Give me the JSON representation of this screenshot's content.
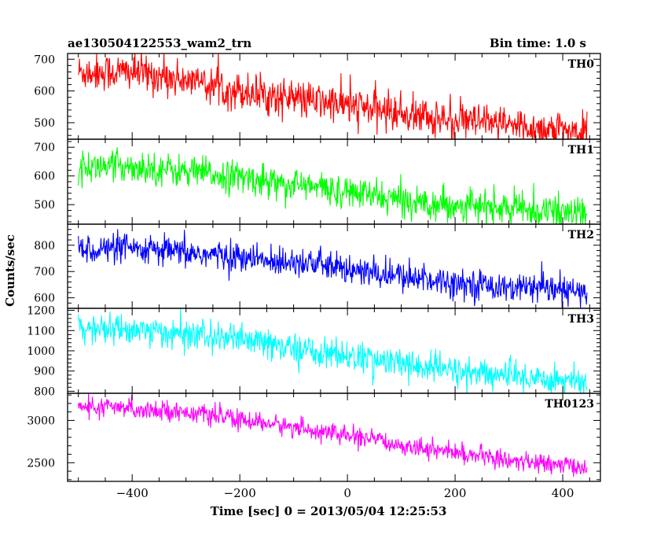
{
  "header": {
    "title": "ae130504122553_wam2_trn",
    "bin_time": "Bin time: 1.0 s"
  },
  "chart_data": {
    "type": "line",
    "title": "ae130504122553_wam2_trn",
    "subtitle": "Bin time: 1.0 s",
    "xlabel": "Time [sec] 0 = 2013/05/04 12:25:53",
    "ylabel": "Counts/sec",
    "xlim": [
      -520,
      470
    ],
    "x_ticks": [
      -400,
      -200,
      0,
      200,
      400
    ],
    "x_tick_labels": [
      "−400",
      "−200",
      "0",
      "200",
      "400"
    ],
    "x_range": [
      -500,
      445
    ],
    "bin_width": 1.0,
    "grid": false,
    "panels": [
      {
        "name": "TH0",
        "color": "#ff0000",
        "ylim": [
          448,
          718
        ],
        "y_ticks": [
          500,
          600,
          700
        ],
        "trend": [
          [
            -500,
            660
          ],
          [
            -400,
            660
          ],
          [
            -300,
            635
          ],
          [
            -200,
            600
          ],
          [
            -100,
            575
          ],
          [
            0,
            555
          ],
          [
            100,
            530
          ],
          [
            200,
            505
          ],
          [
            300,
            490
          ],
          [
            445,
            470
          ]
        ],
        "noise_sd": 30
      },
      {
        "name": "TH1",
        "color": "#00ff00",
        "ylim": [
          432,
          728
        ],
        "y_ticks": [
          500,
          600,
          700
        ],
        "trend": [
          [
            -500,
            630
          ],
          [
            -400,
            635
          ],
          [
            -300,
            615
          ],
          [
            -200,
            595
          ],
          [
            -100,
            570
          ],
          [
            0,
            545
          ],
          [
            100,
            515
          ],
          [
            200,
            500
          ],
          [
            300,
            485
          ],
          [
            445,
            470
          ]
        ],
        "noise_sd": 28
      },
      {
        "name": "TH2",
        "color": "#0000ff",
        "ylim": [
          560,
          880
        ],
        "y_ticks": [
          600,
          700,
          800
        ],
        "trend": [
          [
            -500,
            785
          ],
          [
            -400,
            785
          ],
          [
            -300,
            770
          ],
          [
            -200,
            755
          ],
          [
            -140,
            735
          ],
          [
            -100,
            745
          ],
          [
            0,
            705
          ],
          [
            100,
            680
          ],
          [
            200,
            660
          ],
          [
            300,
            640
          ],
          [
            445,
            620
          ]
        ],
        "noise_sd": 28
      },
      {
        "name": "TH3",
        "color": "#00ffff",
        "ylim": [
          790,
          1210
        ],
        "y_ticks": [
          800,
          900,
          1000,
          1100,
          1200
        ],
        "trend": [
          [
            -500,
            1110
          ],
          [
            -400,
            1105
          ],
          [
            -300,
            1080
          ],
          [
            -200,
            1055
          ],
          [
            -100,
            1010
          ],
          [
            0,
            975
          ],
          [
            100,
            935
          ],
          [
            200,
            900
          ],
          [
            300,
            875
          ],
          [
            445,
            850
          ]
        ],
        "noise_sd": 38
      },
      {
        "name": "TH0123",
        "color": "#ff00ff",
        "ylim": [
          2280,
          3320
        ],
        "y_ticks": [
          2500,
          3000
        ],
        "trend": [
          [
            -500,
            3160
          ],
          [
            -400,
            3140
          ],
          [
            -300,
            3100
          ],
          [
            -200,
            3010
          ],
          [
            -100,
            2920
          ],
          [
            0,
            2820
          ],
          [
            100,
            2710
          ],
          [
            200,
            2620
          ],
          [
            300,
            2530
          ],
          [
            445,
            2440
          ]
        ],
        "noise_sd": 55
      }
    ]
  }
}
